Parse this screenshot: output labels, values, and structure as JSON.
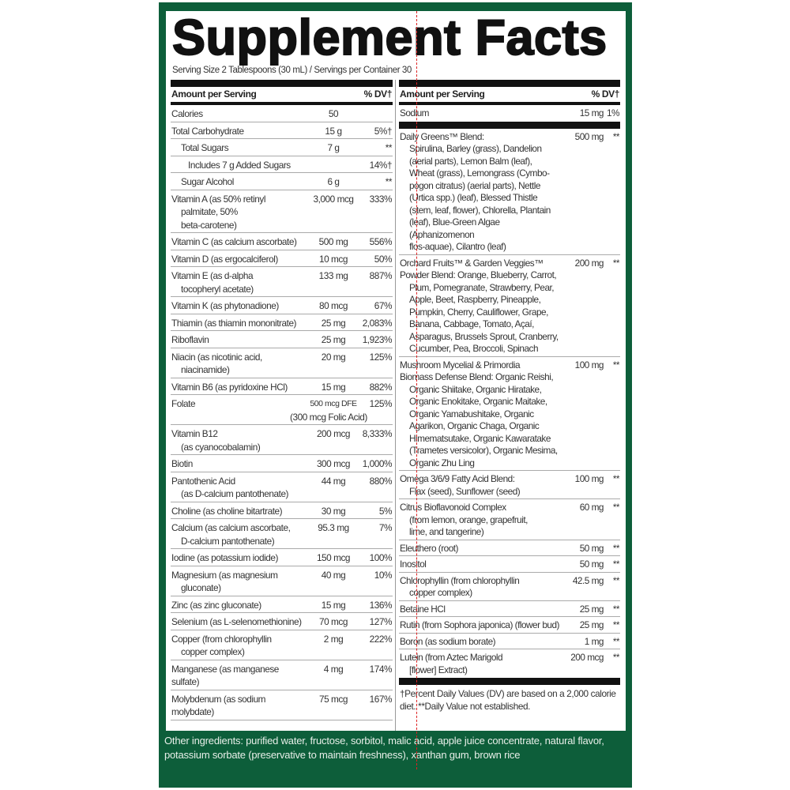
{
  "title": "Supplement Facts",
  "serving": "Serving Size 2 Tablespoons (30 mL) / Servings per Container 30",
  "header": {
    "amount": "Amount per Serving",
    "dv": "% DV†"
  },
  "left_rows": [
    {
      "name": [
        "Calories"
      ],
      "amount": "50",
      "dv": "",
      "indent": 0
    },
    {
      "name": [
        "Total Carbohydrate"
      ],
      "amount": "15 g",
      "dv": "5%†",
      "indent": 0
    },
    {
      "name": [
        "Total Sugars"
      ],
      "amount": "7 g",
      "dv": "**",
      "indent": 1
    },
    {
      "name": [
        "Includes 7 g Added Sugars"
      ],
      "amount": "",
      "dv": "14%†",
      "indent": 2
    },
    {
      "name": [
        "Sugar Alcohol"
      ],
      "amount": "6 g",
      "dv": "**",
      "indent": 1
    },
    {
      "name": [
        "Vitamin A (as 50% retinyl",
        "palmitate, 50%",
        "beta-carotene)"
      ],
      "amount": "3,000 mcg",
      "dv": "333%",
      "indent": 0
    },
    {
      "name": [
        "Vitamin C (as calcium ascorbate)"
      ],
      "amount": "500 mg",
      "dv": "556%",
      "indent": 0
    },
    {
      "name": [
        "Vitamin D (as ergocalciferol)"
      ],
      "amount": "10 mcg",
      "dv": "50%",
      "indent": 0
    },
    {
      "name": [
        "Vitamin E (as d-alpha",
        "tocopheryl acetate)"
      ],
      "amount": "133 mg",
      "dv": "887%",
      "indent": 0
    },
    {
      "name": [
        "Vitamin K (as phytonadione)"
      ],
      "amount": "80 mcg",
      "dv": "67%",
      "indent": 0
    },
    {
      "name": [
        "Thiamin (as thiamin mononitrate)"
      ],
      "amount": "25 mg",
      "dv": "2,083%",
      "indent": 0
    },
    {
      "name": [
        "Riboflavin"
      ],
      "amount": "25 mg",
      "dv": "1,923%",
      "indent": 0
    },
    {
      "name": [
        "Niacin (as nicotinic acid,",
        "niacinamide)"
      ],
      "amount": "20 mg",
      "dv": "125%",
      "indent": 0
    },
    {
      "name": [
        "Vitamin B6 (as pyridoxine HCl)"
      ],
      "amount": "15 mg",
      "dv": "882%",
      "indent": 0
    },
    {
      "name": [
        "Folate"
      ],
      "amount": "500 mcg DFE",
      "dv": "125%",
      "indent": 0,
      "note": "(300 mcg Folic Acid)"
    },
    {
      "name": [
        "Vitamin B12",
        "(as cyanocobalamin)"
      ],
      "amount": "200 mcg",
      "dv": "8,333%",
      "indent": 0
    },
    {
      "name": [
        "Biotin"
      ],
      "amount": "300 mcg",
      "dv": "1,000%",
      "indent": 0
    },
    {
      "name": [
        "Pantothenic Acid",
        "(as D-calcium pantothenate)"
      ],
      "amount": "44 mg",
      "dv": "880%",
      "indent": 0
    },
    {
      "name": [
        "Choline (as choline bitartrate)"
      ],
      "amount": "30 mg",
      "dv": "5%",
      "indent": 0
    },
    {
      "name": [
        "Calcium (as calcium ascorbate,",
        "D-calcium pantothenate)"
      ],
      "amount": "95.3 mg",
      "dv": "7%",
      "indent": 0
    },
    {
      "name": [
        "Iodine (as potassium iodide)"
      ],
      "amount": "150 mcg",
      "dv": "100%",
      "indent": 0
    },
    {
      "name": [
        "Magnesium (as magnesium",
        "gluconate)"
      ],
      "amount": "40 mg",
      "dv": "10%",
      "indent": 0
    },
    {
      "name": [
        "Zinc (as zinc gluconate)"
      ],
      "amount": "15 mg",
      "dv": "136%",
      "indent": 0
    },
    {
      "name": [
        "Selenium (as L-selenomethionine)"
      ],
      "amount": "70 mcg",
      "dv": "127%",
      "indent": 0
    },
    {
      "name": [
        "Copper (from chlorophyllin",
        "copper complex)"
      ],
      "amount": "2 mg",
      "dv": "222%",
      "indent": 0
    },
    {
      "name": [
        "Manganese (as manganese sulfate)"
      ],
      "amount": "4 mg",
      "dv": "174%",
      "indent": 0
    },
    {
      "name": [
        "Molybdenum (as sodium molybdate)"
      ],
      "amount": "75 mcg",
      "dv": "167%",
      "indent": 0
    }
  ],
  "sodium": {
    "name": [
      "Sodium"
    ],
    "amount": "15 mg",
    "dv": "1%"
  },
  "right_rows": [
    {
      "name": [
        "Daily Greens™ Blend:",
        "Spirulina, Barley (grass), Dandelion",
        "(aerial parts), Lemon Balm (leaf),",
        "Wheat (grass), Lemongrass (Cymbo-",
        "pogon citratus) (aerial parts), Nettle",
        "(Urtica spp.) (leaf), Blessed Thistle",
        "(stem, leaf, flower), Chlorella, Plantain",
        "(leaf), Blue-Green Algae (Aphanizomenon",
        "flos-aquae), Cilantro (leaf)"
      ],
      "amount": "500 mg",
      "dv": "**"
    },
    {
      "name": [
        "Orchard Fruits™ & Garden Veggies™",
        "Powder Blend: Orange, Blueberry, Carrot,",
        "Plum, Pomegranate, Strawberry, Pear,",
        "Apple, Beet, Raspberry, Pineapple,",
        "Pumpkin, Cherry, Cauliflower, Grape,",
        "Banana, Cabbage, Tomato, Açaí,",
        "Asparagus, Brussels Sprout, Cranberry,",
        "Cucumber, Pea, Broccoli, Spinach"
      ],
      "amount": "200 mg",
      "dv": "**",
      "flush2": true
    },
    {
      "name": [
        "Mushroom Mycelial & Primordia",
        "Biomass Defense Blend: Organic Reishi,",
        "Organic Shiitake, Organic Hiratake,",
        "Organic Enokitake, Organic Maitake,",
        "Organic Yamabushitake, Organic",
        "Agarikon, Organic Chaga, Organic",
        "Himematsutake, Organic Kawaratake",
        "(Trametes versicolor), Organic Mesima,",
        "Organic Zhu Ling"
      ],
      "amount": "100 mg",
      "dv": "**",
      "flush2": true
    },
    {
      "name": [
        "Omega 3/6/9 Fatty Acid Blend:",
        "Flax (seed), Sunflower (seed)"
      ],
      "amount": "100 mg",
      "dv": "**"
    },
    {
      "name": [
        "Citrus Bioflavonoid Complex",
        "(from lemon, orange, grapefruit,",
        "lime, and tangerine)"
      ],
      "amount": "60 mg",
      "dv": "**"
    },
    {
      "name": [
        "Eleuthero (root)"
      ],
      "amount": "50 mg",
      "dv": "**"
    },
    {
      "name": [
        "Inositol"
      ],
      "amount": "50 mg",
      "dv": "**"
    },
    {
      "name": [
        "Chlorophyllin (from chlorophyllin",
        "copper complex)"
      ],
      "amount": "42.5 mg",
      "dv": "**"
    },
    {
      "name": [
        "Betaine HCl"
      ],
      "amount": "25 mg",
      "dv": "**"
    },
    {
      "name": [
        "Rutin (from Sophora japonica) (flower bud)"
      ],
      "amount": "25 mg",
      "dv": "**"
    },
    {
      "name": [
        "Boron (as sodium borate)"
      ],
      "amount": "1 mg",
      "dv": "**"
    },
    {
      "name": [
        "Lutein (from Aztec Marigold",
        "[flower] Extract)"
      ],
      "amount": "200 mcg",
      "dv": "**"
    }
  ],
  "footnote": "†Percent Daily Values (DV) are based on a 2,000 calorie diet. **Daily Value not established.",
  "other_ingredients": "Other ingredients: purified water, fructose, sorbitol, malic acid, apple juice concentrate, natural flavor, potassium sorbate (preservative to maintain freshness), xanthan gum, brown rice",
  "colors": {
    "frame": "#0d5e3a",
    "bars": "#111111",
    "annotation_line": "#dd2222"
  }
}
